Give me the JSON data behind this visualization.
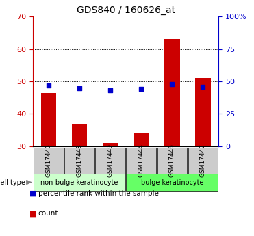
{
  "title": "GDS840 / 160626_at",
  "samples": [
    "GSM17445",
    "GSM17448",
    "GSM17449",
    "GSM17444",
    "GSM17446",
    "GSM17447"
  ],
  "bar_values": [
    46.5,
    37.0,
    31.0,
    34.0,
    63.0,
    51.0
  ],
  "bar_bottom": 30,
  "dot_values_pct": [
    47,
    45,
    43,
    44,
    48,
    46
  ],
  "ylim_left": [
    30,
    70
  ],
  "ylim_right": [
    0,
    100
  ],
  "yticks_left": [
    30,
    40,
    50,
    60,
    70
  ],
  "yticks_right": [
    0,
    25,
    50,
    75,
    100
  ],
  "ytick_labels_right": [
    "0",
    "25",
    "50",
    "75",
    "100%"
  ],
  "bar_color": "#cc0000",
  "dot_color": "#0000cc",
  "cell_types": [
    {
      "label": "non-bulge keratinocyte",
      "span": [
        0,
        3
      ],
      "color": "#ccffcc"
    },
    {
      "label": "bulge keratinocyte",
      "span": [
        3,
        6
      ],
      "color": "#66ff66"
    }
  ],
  "legend_items": [
    {
      "label": "count",
      "color": "#cc0000"
    },
    {
      "label": "percentile rank within the sample",
      "color": "#0000cc"
    }
  ],
  "cell_type_label": "cell type",
  "bg_color": "#ffffff",
  "tick_bg": "#cccccc",
  "fontsize_title": 10,
  "fontsize_ticks": 8,
  "fontsize_sample": 6.5,
  "fontsize_cell": 7,
  "fontsize_legend": 7.5
}
